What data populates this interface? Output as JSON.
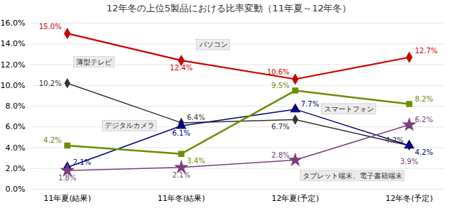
{
  "chart_data": {
    "type": "line",
    "title": "12年冬の上位5製品における比率変動（11年夏～12年冬）",
    "categories": [
      "11年夏(結果)",
      "11年冬(結果)",
      "12年夏(予定)",
      "12年冬(予定)"
    ],
    "series": [
      {
        "name": "パソコン",
        "color": "#cc0000",
        "marker": "diamond",
        "values": [
          15.0,
          12.4,
          10.6,
          12.7
        ],
        "value_labels": [
          "15.0%",
          "12.4%",
          "10.6%",
          "12.7%"
        ]
      },
      {
        "name": "薄型テレビ",
        "color": "#333333",
        "marker": "diamond",
        "values": [
          10.2,
          6.4,
          6.7,
          4.2
        ],
        "value_labels": [
          "10.2%",
          "6.4%",
          "6.7%",
          "4.2%"
        ]
      },
      {
        "name": "デジタルカメラ",
        "color": "#000080",
        "marker": "triangle",
        "values": [
          2.1,
          6.1,
          7.7,
          4.2
        ],
        "value_labels": [
          "2.1%",
          "6.1%",
          "7.7%",
          "4.2%"
        ]
      },
      {
        "name": "スマートフォン",
        "color": "#6b8e00",
        "marker": "square",
        "values": [
          4.2,
          3.4,
          9.5,
          8.2
        ],
        "value_labels": [
          "4.2%",
          "3.4%",
          "9.5%",
          "8.2%"
        ]
      },
      {
        "name": "タブレット端末、電子書籍端末",
        "color": "#7b3f7b",
        "marker": "star",
        "values": [
          1.8,
          2.1,
          2.8,
          6.2
        ],
        "value_labels": [
          "1.8%",
          "2.1%",
          "2.8%",
          "6.2%"
        ]
      }
    ],
    "annotations": [
      {
        "text": "3.9%",
        "x": "12年冬(予定)",
        "y": 3.9,
        "color": "#7b3f7b"
      }
    ],
    "ylim": [
      0.0,
      16.0
    ],
    "yticks": [
      {
        "value": 0.0,
        "label": "0.0%"
      },
      {
        "value": 2.0,
        "label": "2.0%"
      },
      {
        "value": 4.0,
        "label": "4.0%"
      },
      {
        "value": 6.0,
        "label": "6.0%"
      },
      {
        "value": 8.0,
        "label": "8.0%"
      },
      {
        "value": 10.0,
        "label": "10.0%"
      },
      {
        "value": 12.0,
        "label": "12.0%"
      },
      {
        "value": 14.0,
        "label": "14.0%"
      },
      {
        "value": 16.0,
        "label": "16.0%"
      }
    ],
    "grid": true,
    "data_labels": true
  }
}
